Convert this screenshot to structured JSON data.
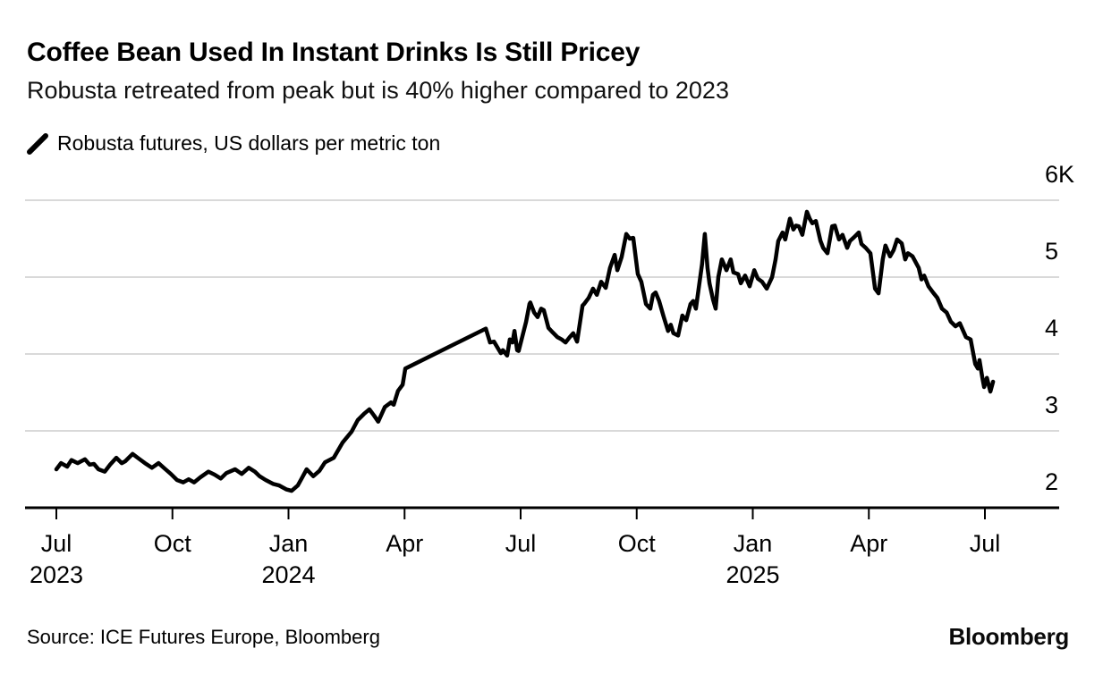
{
  "header": {
    "title": "Coffee Bean Used In Instant Drinks Is Still Pricey",
    "subtitle": "Robusta retreated from peak but is 40% higher compared to 2023"
  },
  "legend": {
    "label": "Robusta futures, US dollars per metric ton",
    "swatch_color": "#000000"
  },
  "footer": {
    "source": "Source: ICE Futures Europe, Bloomberg",
    "brand": "Bloomberg"
  },
  "colors": {
    "background": "#ffffff",
    "line": "#000000",
    "grid": "#d9d9d9",
    "axis": "#000000",
    "text": "#000000"
  },
  "chart_data": {
    "type": "line",
    "title": "Coffee Bean Used In Instant Drinks Is Still Pricey",
    "grid": "horizontal",
    "legend_position": "top-left",
    "x_axis": {
      "unit": "months since Jul 2023",
      "range": [
        0,
        25.9
      ],
      "ticks": [
        {
          "pos": 0,
          "label": "Jul",
          "year": "2023"
        },
        {
          "pos": 3,
          "label": "Oct"
        },
        {
          "pos": 6,
          "label": "Jan",
          "year": "2024"
        },
        {
          "pos": 9,
          "label": "Apr"
        },
        {
          "pos": 12,
          "label": "Jul"
        },
        {
          "pos": 15,
          "label": "Oct"
        },
        {
          "pos": 18,
          "label": "Jan",
          "year": "2025"
        },
        {
          "pos": 21,
          "label": "Apr"
        },
        {
          "pos": 24,
          "label": "Jul"
        }
      ]
    },
    "y_axis": {
      "unit": "US dollars per metric ton",
      "range": [
        2000,
        6300
      ],
      "baseline_value": 2000,
      "ticks": [
        {
          "value": 6000,
          "label": "6K"
        },
        {
          "value": 5000,
          "label": "5"
        },
        {
          "value": 4000,
          "label": "4"
        },
        {
          "value": 3000,
          "label": "3"
        },
        {
          "value": 2000,
          "label": "2"
        }
      ]
    },
    "series": [
      {
        "name": "Robusta futures, US dollars per metric ton",
        "color": "#000000",
        "note": "straight segment between pos 9.02 and 11.1 is a contract-roll gap",
        "points": [
          [
            0,
            2500
          ],
          [
            0.12,
            2580
          ],
          [
            0.28,
            2535
          ],
          [
            0.39,
            2620
          ],
          [
            0.55,
            2580
          ],
          [
            0.74,
            2630
          ],
          [
            0.86,
            2560
          ],
          [
            0.97,
            2570
          ],
          [
            1.09,
            2500
          ],
          [
            1.25,
            2470
          ],
          [
            1.39,
            2560
          ],
          [
            1.55,
            2650
          ],
          [
            1.69,
            2580
          ],
          [
            1.78,
            2605
          ],
          [
            1.97,
            2700
          ],
          [
            2.13,
            2640
          ],
          [
            2.29,
            2580
          ],
          [
            2.47,
            2520
          ],
          [
            2.64,
            2580
          ],
          [
            2.82,
            2500
          ],
          [
            2.96,
            2440
          ],
          [
            3.12,
            2360
          ],
          [
            3.28,
            2330
          ],
          [
            3.42,
            2370
          ],
          [
            3.56,
            2330
          ],
          [
            3.72,
            2395
          ],
          [
            3.93,
            2470
          ],
          [
            4.09,
            2430
          ],
          [
            4.25,
            2380
          ],
          [
            4.39,
            2450
          ],
          [
            4.62,
            2500
          ],
          [
            4.79,
            2440
          ],
          [
            4.97,
            2520
          ],
          [
            5.13,
            2470
          ],
          [
            5.25,
            2410
          ],
          [
            5.41,
            2360
          ],
          [
            5.6,
            2310
          ],
          [
            5.76,
            2290
          ],
          [
            5.94,
            2240
          ],
          [
            6.08,
            2220
          ],
          [
            6.24,
            2290
          ],
          [
            6.34,
            2380
          ],
          [
            6.47,
            2500
          ],
          [
            6.64,
            2410
          ],
          [
            6.8,
            2480
          ],
          [
            6.94,
            2590
          ],
          [
            7.17,
            2650
          ],
          [
            7.4,
            2850
          ],
          [
            7.63,
            2990
          ],
          [
            7.79,
            3140
          ],
          [
            7.95,
            3220
          ],
          [
            8.09,
            3280
          ],
          [
            8.21,
            3200
          ],
          [
            8.32,
            3120
          ],
          [
            8.49,
            3310
          ],
          [
            8.65,
            3370
          ],
          [
            8.72,
            3340
          ],
          [
            8.83,
            3520
          ],
          [
            8.95,
            3600
          ],
          [
            9.02,
            3810
          ],
          [
            11.1,
            4330
          ],
          [
            11.21,
            4150
          ],
          [
            11.31,
            4160
          ],
          [
            11.49,
            4010
          ],
          [
            11.54,
            4050
          ],
          [
            11.65,
            3980
          ],
          [
            11.72,
            4190
          ],
          [
            11.79,
            4150
          ],
          [
            11.84,
            4300
          ],
          [
            11.91,
            4050
          ],
          [
            11.95,
            4040
          ],
          [
            12.14,
            4420
          ],
          [
            12.23,
            4650
          ],
          [
            12.25,
            4670
          ],
          [
            12.35,
            4540
          ],
          [
            12.44,
            4480
          ],
          [
            12.53,
            4590
          ],
          [
            12.6,
            4570
          ],
          [
            12.72,
            4340
          ],
          [
            12.83,
            4280
          ],
          [
            12.95,
            4220
          ],
          [
            13.06,
            4190
          ],
          [
            13.16,
            4150
          ],
          [
            13.27,
            4220
          ],
          [
            13.36,
            4270
          ],
          [
            13.46,
            4160
          ],
          [
            13.6,
            4630
          ],
          [
            13.64,
            4650
          ],
          [
            13.76,
            4730
          ],
          [
            13.87,
            4850
          ],
          [
            13.97,
            4770
          ],
          [
            14.08,
            4940
          ],
          [
            14.2,
            4860
          ],
          [
            14.31,
            5120
          ],
          [
            14.43,
            5290
          ],
          [
            14.5,
            5090
          ],
          [
            14.61,
            5260
          ],
          [
            14.73,
            5560
          ],
          [
            14.82,
            5500
          ],
          [
            14.91,
            5510
          ],
          [
            15.03,
            5040
          ],
          [
            15.12,
            4940
          ],
          [
            15.24,
            4650
          ],
          [
            15.35,
            4590
          ],
          [
            15.42,
            4770
          ],
          [
            15.49,
            4800
          ],
          [
            15.58,
            4690
          ],
          [
            15.7,
            4480
          ],
          [
            15.81,
            4300
          ],
          [
            15.88,
            4380
          ],
          [
            15.95,
            4270
          ],
          [
            16.07,
            4240
          ],
          [
            16.18,
            4500
          ],
          [
            16.28,
            4440
          ],
          [
            16.39,
            4650
          ],
          [
            16.46,
            4690
          ],
          [
            16.53,
            4590
          ],
          [
            16.69,
            5170
          ],
          [
            16.76,
            5560
          ],
          [
            16.83,
            5120
          ],
          [
            16.88,
            4920
          ],
          [
            16.97,
            4710
          ],
          [
            17.04,
            4590
          ],
          [
            17.11,
            5000
          ],
          [
            17.2,
            5230
          ],
          [
            17.32,
            5090
          ],
          [
            17.43,
            5230
          ],
          [
            17.5,
            5060
          ],
          [
            17.62,
            5040
          ],
          [
            17.69,
            4920
          ],
          [
            17.8,
            5020
          ],
          [
            17.92,
            4880
          ],
          [
            18.04,
            5090
          ],
          [
            18.13,
            4980
          ],
          [
            18.24,
            4940
          ],
          [
            18.36,
            4850
          ],
          [
            18.5,
            5000
          ],
          [
            18.59,
            5230
          ],
          [
            18.66,
            5470
          ],
          [
            18.77,
            5580
          ],
          [
            18.84,
            5490
          ],
          [
            18.96,
            5760
          ],
          [
            19.05,
            5620
          ],
          [
            19.12,
            5670
          ],
          [
            19.19,
            5660
          ],
          [
            19.28,
            5550
          ],
          [
            19.4,
            5850
          ],
          [
            19.47,
            5760
          ],
          [
            19.54,
            5700
          ],
          [
            19.63,
            5730
          ],
          [
            19.75,
            5470
          ],
          [
            19.82,
            5380
          ],
          [
            19.93,
            5310
          ],
          [
            20.05,
            5660
          ],
          [
            20.12,
            5670
          ],
          [
            20.23,
            5490
          ],
          [
            20.32,
            5550
          ],
          [
            20.44,
            5380
          ],
          [
            20.51,
            5470
          ],
          [
            20.62,
            5520
          ],
          [
            20.74,
            5580
          ],
          [
            20.81,
            5430
          ],
          [
            20.92,
            5380
          ],
          [
            21.04,
            5310
          ],
          [
            21.16,
            4850
          ],
          [
            21.25,
            4790
          ],
          [
            21.36,
            5230
          ],
          [
            21.43,
            5410
          ],
          [
            21.55,
            5270
          ],
          [
            21.64,
            5350
          ],
          [
            21.73,
            5490
          ],
          [
            21.85,
            5440
          ],
          [
            21.94,
            5230
          ],
          [
            22.01,
            5310
          ],
          [
            22.13,
            5270
          ],
          [
            22.29,
            5120
          ],
          [
            22.36,
            4970
          ],
          [
            22.43,
            5020
          ],
          [
            22.54,
            4880
          ],
          [
            22.66,
            4800
          ],
          [
            22.77,
            4730
          ],
          [
            22.89,
            4590
          ],
          [
            23.01,
            4540
          ],
          [
            23.12,
            4420
          ],
          [
            23.24,
            4360
          ],
          [
            23.35,
            4400
          ],
          [
            23.51,
            4220
          ],
          [
            23.63,
            4190
          ],
          [
            23.75,
            3870
          ],
          [
            23.82,
            3810
          ],
          [
            23.86,
            3920
          ],
          [
            23.93,
            3700
          ],
          [
            23.98,
            3570
          ],
          [
            24.05,
            3690
          ],
          [
            24.14,
            3510
          ],
          [
            24.21,
            3640
          ]
        ]
      }
    ]
  }
}
